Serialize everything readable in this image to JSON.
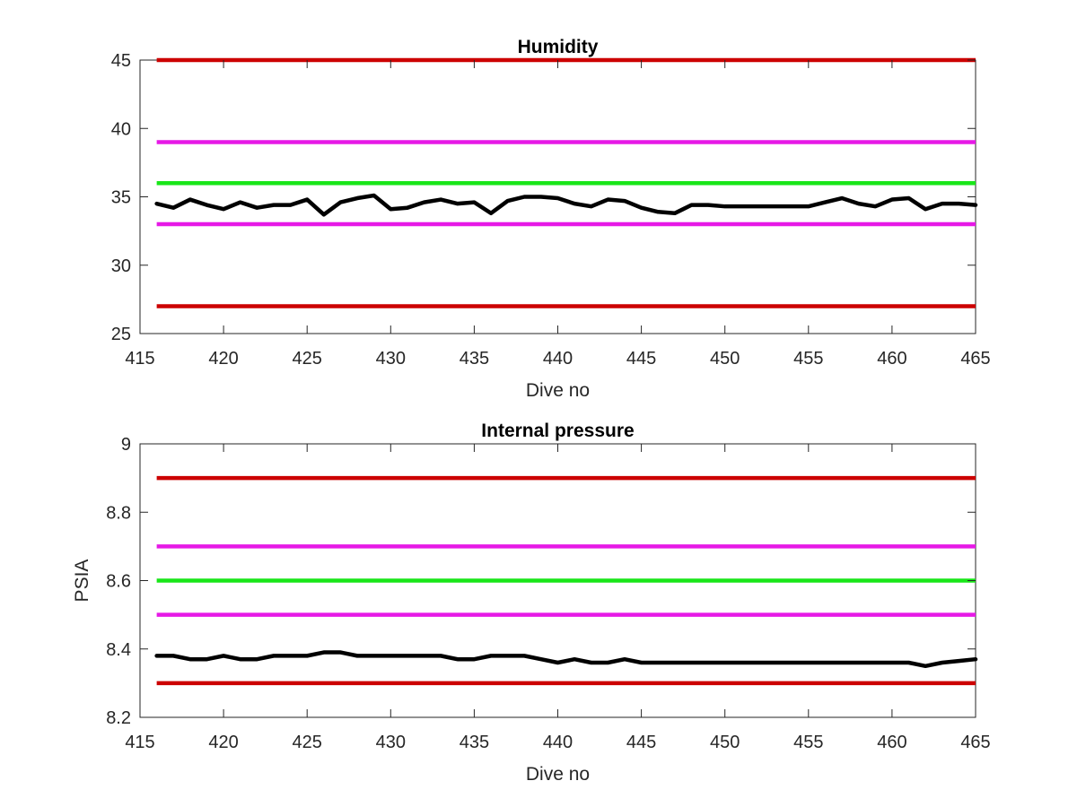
{
  "chart_data": [
    {
      "type": "line",
      "title": "Humidity",
      "xlabel": "Dive no",
      "ylabel": "",
      "xlim": [
        415,
        465
      ],
      "ylim": [
        25,
        45
      ],
      "xticks": [
        "415",
        "420",
        "425",
        "430",
        "435",
        "440",
        "445",
        "450",
        "455",
        "460",
        "465"
      ],
      "yticks": [
        "25",
        "30",
        "35",
        "40",
        "45"
      ],
      "grid": false,
      "threshold_lines": [
        {
          "y": 45,
          "color": "#cc0000"
        },
        {
          "y": 39,
          "color": "#e619e6"
        },
        {
          "y": 36,
          "color": "#19e619"
        },
        {
          "y": 33,
          "color": "#e619e6"
        },
        {
          "y": 27,
          "color": "#cc0000"
        }
      ],
      "x_range": [
        416,
        465
      ],
      "series": [
        {
          "color": "#000000",
          "x": [
            416,
            417,
            418,
            419,
            420,
            421,
            422,
            423,
            424,
            425,
            426,
            427,
            428,
            429,
            430,
            431,
            432,
            433,
            434,
            435,
            436,
            437,
            438,
            439,
            440,
            441,
            442,
            443,
            444,
            445,
            446,
            447,
            448,
            449,
            450,
            451,
            452,
            453,
            454,
            455,
            456,
            457,
            458,
            459,
            460,
            461,
            462,
            463,
            464,
            465
          ],
          "y": [
            34.5,
            34.2,
            34.8,
            34.4,
            34.1,
            34.6,
            34.2,
            34.4,
            34.4,
            34.8,
            33.7,
            34.6,
            34.9,
            35.1,
            34.1,
            34.2,
            34.6,
            34.8,
            34.5,
            34.6,
            33.8,
            34.7,
            35.0,
            35.0,
            34.9,
            34.5,
            34.3,
            34.8,
            34.7,
            34.2,
            33.9,
            33.8,
            34.4,
            34.4,
            34.3,
            34.3,
            34.3,
            34.3,
            34.3,
            34.3,
            34.6,
            34.9,
            34.5,
            34.3,
            34.8,
            34.9,
            34.1,
            34.5,
            34.5,
            34.4
          ]
        }
      ]
    },
    {
      "type": "line",
      "title": "Internal pressure",
      "xlabel": "Dive no",
      "ylabel": "PSIA",
      "xlim": [
        415,
        465
      ],
      "ylim": [
        8.2,
        9.0
      ],
      "xticks": [
        "415",
        "420",
        "425",
        "430",
        "435",
        "440",
        "445",
        "450",
        "455",
        "460",
        "465"
      ],
      "yticks": [
        "8.2",
        "8.4",
        "8.6",
        "8.8",
        "9"
      ],
      "grid": false,
      "threshold_lines": [
        {
          "y": 8.9,
          "color": "#cc0000"
        },
        {
          "y": 8.7,
          "color": "#e619e6"
        },
        {
          "y": 8.6,
          "color": "#19e619"
        },
        {
          "y": 8.5,
          "color": "#e619e6"
        },
        {
          "y": 8.3,
          "color": "#cc0000"
        }
      ],
      "x_range": [
        416,
        465
      ],
      "series": [
        {
          "color": "#000000",
          "x": [
            416,
            417,
            418,
            419,
            420,
            421,
            422,
            423,
            424,
            425,
            426,
            427,
            428,
            429,
            430,
            431,
            432,
            433,
            434,
            435,
            436,
            437,
            438,
            439,
            440,
            441,
            442,
            443,
            444,
            445,
            446,
            447,
            448,
            449,
            450,
            451,
            452,
            453,
            454,
            455,
            456,
            457,
            458,
            459,
            460,
            461,
            462,
            463,
            464,
            465
          ],
          "y": [
            8.38,
            8.38,
            8.37,
            8.37,
            8.38,
            8.37,
            8.37,
            8.38,
            8.38,
            8.38,
            8.39,
            8.39,
            8.38,
            8.38,
            8.38,
            8.38,
            8.38,
            8.38,
            8.37,
            8.37,
            8.38,
            8.38,
            8.38,
            8.37,
            8.36,
            8.37,
            8.36,
            8.36,
            8.37,
            8.36,
            8.36,
            8.36,
            8.36,
            8.36,
            8.36,
            8.36,
            8.36,
            8.36,
            8.36,
            8.36,
            8.36,
            8.36,
            8.36,
            8.36,
            8.36,
            8.36,
            8.35,
            8.36,
            8.365,
            8.37
          ]
        }
      ]
    }
  ]
}
